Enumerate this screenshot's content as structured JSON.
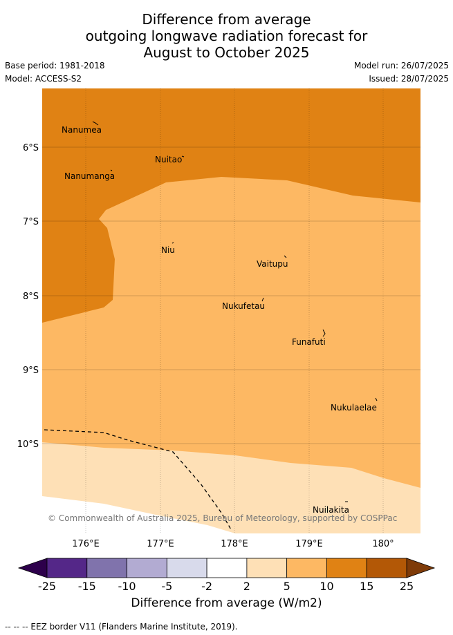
{
  "header": {
    "title_lines": [
      "Difference from average",
      "outgoing longwave radiation forecast for",
      "August to October 2025"
    ],
    "base_period": "Base period: 1981-2018",
    "model": "Model: ACCESS-S2",
    "model_run": "Model run: 26/07/2025",
    "issued": "Issued: 28/07/2025"
  },
  "map": {
    "lat_labels": [
      "6°S",
      "7°S",
      "8°S",
      "9°S",
      "10°S"
    ],
    "lon_labels": [
      "176°E",
      "177°E",
      "178°E",
      "179°E",
      "180°"
    ],
    "places": [
      "Nanumea",
      "Nuitao",
      "Nanumanga",
      "Niu",
      "Vaitupu",
      "Nukufetau",
      "Funafuti",
      "Nukulaelae",
      "Nuilakita"
    ],
    "copyright": "© Commonwealth of Australia 2025, Bureau of Meteorology, supported by COSPPac",
    "colors": {
      "c_10_15": "#e08214",
      "c_5_10": "#fdb863",
      "c_2_5": "#fee0b6"
    }
  },
  "colorbar": {
    "ticks": [
      "-25",
      "-15",
      "-10",
      "-5",
      "-2",
      "2",
      "5",
      "10",
      "15",
      "25"
    ],
    "colors": [
      "#542788",
      "#8073ac",
      "#b2abd2",
      "#d8daeb",
      "#ffffff",
      "#fee0b6",
      "#fdb863",
      "#e08214",
      "#b35806"
    ],
    "under_color": "#2d004b",
    "over_color": "#7f3b08",
    "title": "Difference from average (W/m2)"
  },
  "legend": {
    "eez": "-- -- -- EEZ border V11 (Flanders Marine Institute, 2019)."
  }
}
